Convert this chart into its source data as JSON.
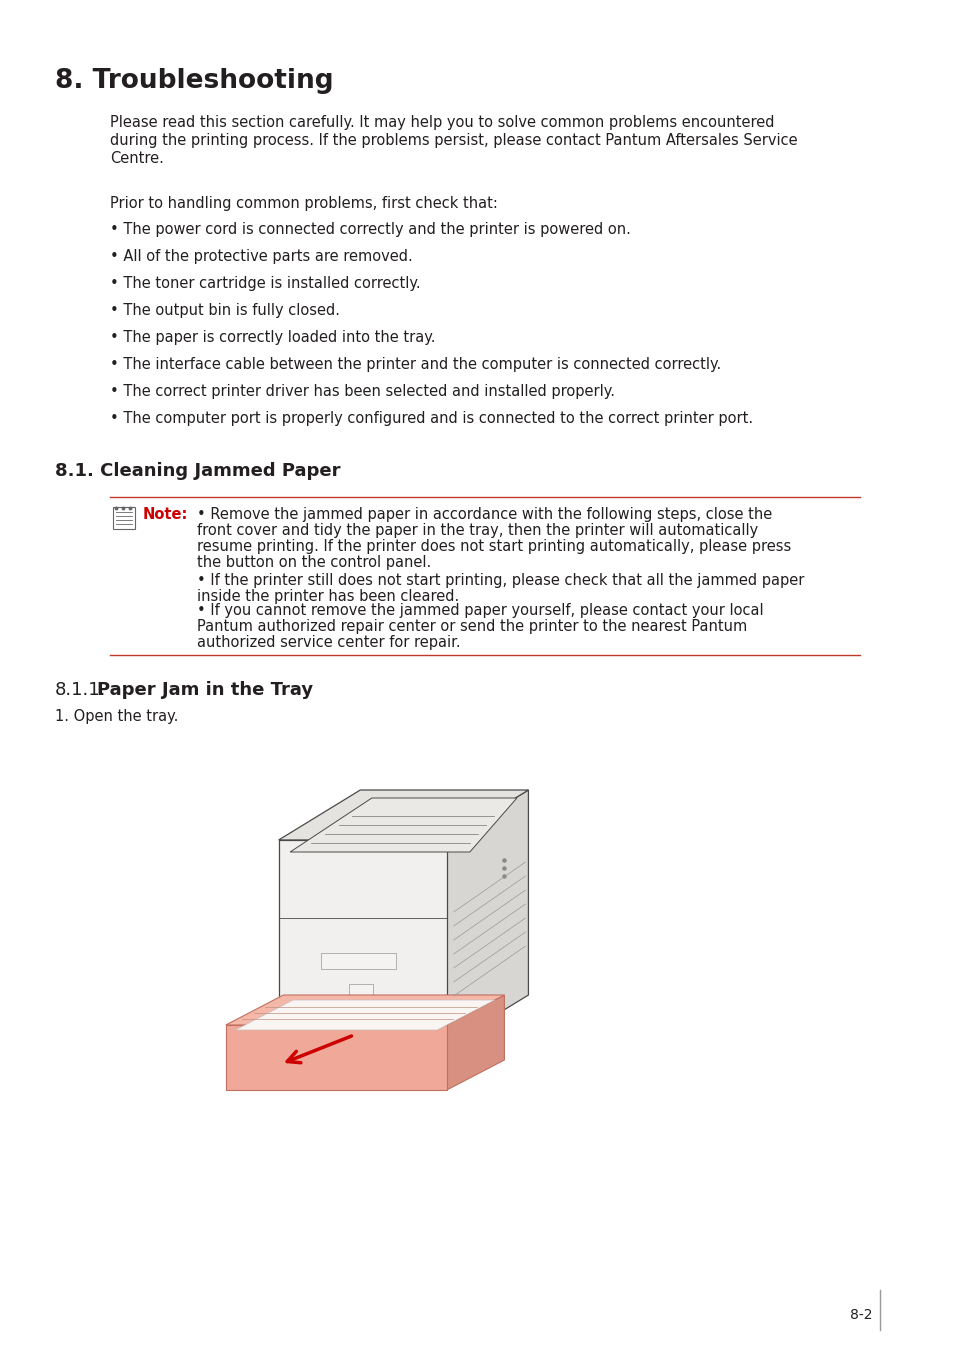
{
  "title": "8. Troubleshooting",
  "subtitle_line1": "Please read this section carefully. It may help you to solve common problems encountered",
  "subtitle_line2": "during the printing process. If the problems persist, please contact Pantum Aftersales Service",
  "subtitle_line3": "Centre.",
  "prior_text": "Prior to handling common problems, first check that:",
  "bullets": [
    "• The power cord is connected correctly and the printer is powered on.",
    "• All of the protective parts are removed.",
    "• The toner cartridge is installed correctly.",
    "• The output bin is fully closed.",
    "• The paper is correctly loaded into the tray.",
    "• The interface cable between the printer and the computer is connected correctly.",
    "• The correct printer driver has been selected and installed properly.",
    "• The computer port is properly configured and is connected to the correct printer port."
  ],
  "section_81": "8.1. Cleaning Jammed Paper",
  "note_label": "Note:",
  "note_text1a": "• Remove the jammed paper in accordance with the following steps, close the",
  "note_text1b": "front cover and tidy the paper in the tray, then the printer will automatically",
  "note_text1c": "resume printing. If the printer does not start printing automatically, please press",
  "note_text1d": "the button on the control panel.",
  "note_text2a": "• If the printer still does not start printing, please check that all the jammed paper",
  "note_text2b": "inside the printer has been cleared.",
  "note_text3a": "• If you cannot remove the jammed paper yourself, please contact your local",
  "note_text3b": "Pantum authorized repair center or send the printer to the nearest Pantum",
  "note_text3c": "authorized service center for repair.",
  "section_811_prefix": "8.1.1.",
  "section_811_bold": "Paper Jam in the Tray",
  "step1": "1. Open the tray.",
  "page_number": "8-2",
  "bg_color": "#ffffff",
  "text_color": "#231f20",
  "red_color": "#cc0000",
  "line_color": "#c0392b",
  "title_fontsize": 19,
  "section_fontsize": 13,
  "body_fontsize": 10.5,
  "note_fontsize": 10.5,
  "small_fontsize": 10.5
}
